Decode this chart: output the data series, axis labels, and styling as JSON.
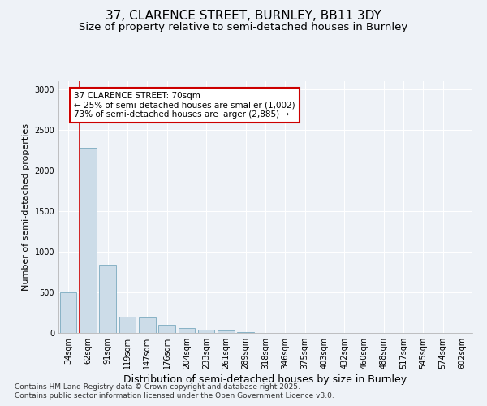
{
  "title1": "37, CLARENCE STREET, BURNLEY, BB11 3DY",
  "title2": "Size of property relative to semi-detached houses in Burnley",
  "xlabel": "Distribution of semi-detached houses by size in Burnley",
  "ylabel": "Number of semi-detached properties",
  "categories": [
    "34sqm",
    "62sqm",
    "91sqm",
    "119sqm",
    "147sqm",
    "176sqm",
    "204sqm",
    "233sqm",
    "261sqm",
    "289sqm",
    "318sqm",
    "346sqm",
    "375sqm",
    "403sqm",
    "432sqm",
    "460sqm",
    "488sqm",
    "517sqm",
    "545sqm",
    "574sqm",
    "602sqm"
  ],
  "values": [
    500,
    2280,
    840,
    200,
    190,
    100,
    65,
    45,
    30,
    12,
    5,
    3,
    0,
    0,
    0,
    0,
    0,
    0,
    0,
    0,
    0
  ],
  "bar_color": "#ccdce8",
  "bar_edge_color": "#7aaabf",
  "annotation_text_line1": "37 CLARENCE STREET: 70sqm",
  "annotation_text_line2": "← 25% of semi-detached houses are smaller (1,002)",
  "annotation_text_line3": "73% of semi-detached houses are larger (2,885) →",
  "ylim": [
    0,
    3100
  ],
  "yticks": [
    0,
    500,
    1000,
    1500,
    2000,
    2500,
    3000
  ],
  "red_line_index": 1,
  "footnote1": "Contains HM Land Registry data © Crown copyright and database right 2025.",
  "footnote2": "Contains public sector information licensed under the Open Government Licence v3.0.",
  "background_color": "#eef2f7",
  "plot_bg_color": "#eef2f7",
  "grid_color": "#ffffff",
  "title1_fontsize": 11,
  "title2_fontsize": 9.5,
  "xlabel_fontsize": 9,
  "ylabel_fontsize": 8,
  "tick_fontsize": 7,
  "footnote_fontsize": 6.5,
  "ann_fontsize": 7.5
}
